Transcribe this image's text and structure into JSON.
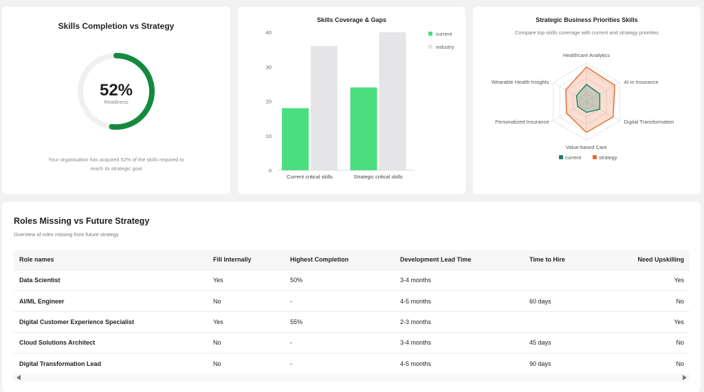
{
  "gauge": {
    "title": "Skills Completion vs Strategy",
    "value": "52%",
    "fraction": 0.52,
    "caption": "Readiness",
    "description": "Your organisation has acquired 52% of the skills required to reach its strategic goal",
    "colors": {
      "progress": "#148a3f",
      "track": "#f0f0f0"
    }
  },
  "chart_data": [
    {
      "type": "bar",
      "title": "Skills Coverage & Gaps",
      "categories": [
        "Current critical skills",
        "Strategic critical skills"
      ],
      "series": [
        {
          "name": "current",
          "values": [
            18,
            24
          ],
          "color": "#4ade80"
        },
        {
          "name": "industry",
          "values": [
            36,
            40
          ],
          "color": "#e5e5e7"
        }
      ],
      "ylim": [
        0,
        40
      ],
      "yticks": [
        "0",
        "10",
        "20",
        "30",
        "40"
      ],
      "legend": "top-right",
      "grid": false
    },
    {
      "type": "radar",
      "title": "Strategic Business Priorities Skills",
      "subtitle": "Compare top skills coverage with current and strategy priorities",
      "axes": [
        "Healthcare Analytics",
        "AI in Insurance",
        "Digital Transformation",
        "Value-based Care",
        "Personalized Insurance",
        "Wearable Health Insights"
      ],
      "series": [
        {
          "name": "current",
          "values": [
            0.45,
            0.4,
            0.4,
            0.28,
            0.26,
            0.3
          ],
          "color": "#17816a"
        },
        {
          "name": "strategy",
          "values": [
            0.9,
            0.85,
            0.8,
            0.8,
            0.6,
            0.62
          ],
          "color": "#e8692c"
        }
      ],
      "legend": "bottom"
    }
  ],
  "table": {
    "title": "Roles Missing vs Future Strategy",
    "subtitle": "Overview of roles missing from future strategy",
    "headers": [
      "Role names",
      "Fill Internally",
      "Highest Completion",
      "Development Lead Time",
      "Time to Hire",
      "Need Upskilling"
    ],
    "rows": [
      [
        "Data Scientist",
        "Yes",
        "50%",
        "3-4 months",
        "",
        "Yes"
      ],
      [
        "AI/ML Engineer",
        "No",
        "-",
        "4-5 months",
        "60 days",
        "No"
      ],
      [
        "Digital Customer Experience Specialist",
        "Yes",
        "55%",
        "2-3 months",
        "",
        "Yes"
      ],
      [
        "Cloud Solutions Architect",
        "No",
        "-",
        "3-4 months",
        "45 days",
        "No"
      ],
      [
        "Digital Transformation Lead",
        "No",
        "-",
        "4-5 months",
        "90 days",
        "No"
      ]
    ]
  }
}
